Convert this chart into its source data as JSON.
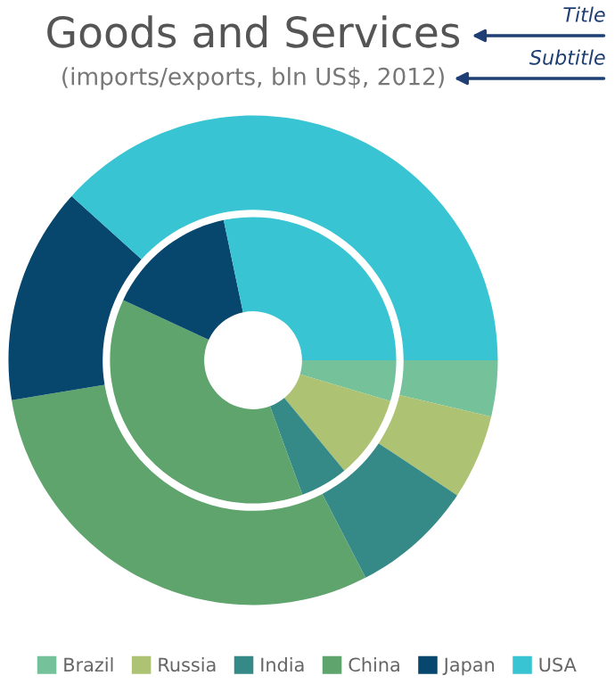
{
  "chart_data": {
    "type": "donut",
    "title": "Goods and Services",
    "subtitle": "(imports/exports, bln US$, 2012)",
    "annotations": [
      "Title",
      "Subtitle"
    ],
    "categories": [
      "Brazil",
      "Russia",
      "India",
      "China",
      "Japan",
      "USA"
    ],
    "colors": [
      "#74c19a",
      "#adc373",
      "#358a88",
      "#5ea46c",
      "#07466d",
      "#38c4d2"
    ],
    "series": [
      {
        "values": [
          3.7,
          5.6,
          8.1,
          30,
          14.3,
          38.3
        ]
      },
      {
        "values": [
          4.6,
          9.4,
          5.4,
          37.5,
          14.8,
          28.3
        ]
      }
    ],
    "legend": "bottom"
  }
}
